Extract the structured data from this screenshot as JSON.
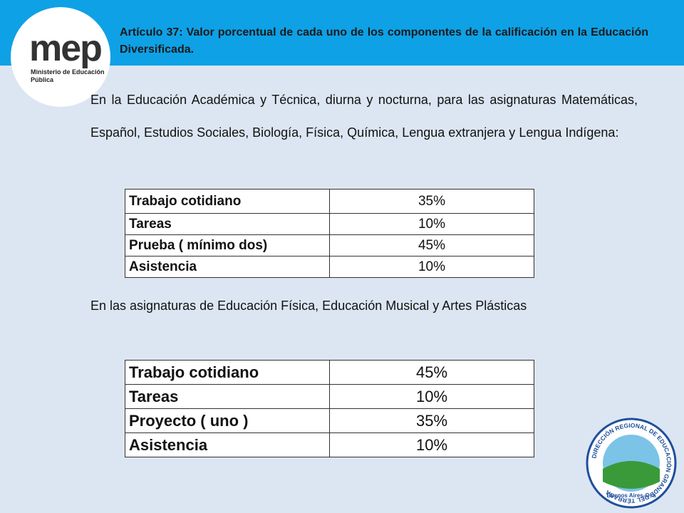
{
  "header": {
    "title": "Artículo 37: Valor porcentual de cada uno de los componentes de la calificación en la Educación Diversificada."
  },
  "logo": {
    "brand": "mep",
    "subtitle": "Ministerio de Educación Pública"
  },
  "paragraphs": [
    "En la Educación Académica y Técnica, diurna y nocturna, para las asignaturas Matemáticas, Español, Estudios Sociales, Biología, Física, Química, Lengua extranjera y Lengua Indígena:",
    "En las asignaturas de Educación Física, Educación Musical y Artes Plásticas"
  ],
  "tables": [
    {
      "rows": [
        [
          "Trabajo cotidiano",
          "35%"
        ],
        [
          "Tareas",
          "10%"
        ],
        [
          "Prueba ( mínimo dos)",
          "45%"
        ],
        [
          "Asistencia",
          "10%"
        ]
      ]
    },
    {
      "rows": [
        [
          "Trabajo cotidiano",
          "45%"
        ],
        [
          "Tareas",
          "10%"
        ],
        [
          "Proyecto ( uno )",
          "35%"
        ],
        [
          "Asistencia",
          "10%"
        ]
      ]
    }
  ],
  "seal": {
    "ring": "DIRECCIÓN REGIONAL DE EDUCACIÓN GRANDE DEL TÉRRABA",
    "place": "Buenos Aires-Osa"
  }
}
